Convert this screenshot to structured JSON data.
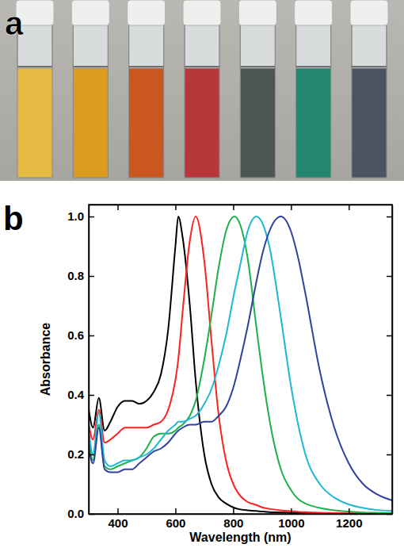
{
  "photo": {
    "panel_label": "a",
    "vial_colors": [
      "#e6bb45",
      "#dc9a1e",
      "#c9571f",
      "#b8373a",
      "#4b5654",
      "#23876f",
      "#4a5561"
    ]
  },
  "chart_data": {
    "type": "line",
    "panel_label": "b",
    "x_label": "Wavelength (nm)",
    "y_label": "Absorbance",
    "x": [
      300,
      315,
      335,
      355,
      375,
      400,
      425,
      450,
      475,
      500,
      525,
      550,
      575,
      600,
      610,
      625,
      650,
      670,
      700,
      725,
      750,
      775,
      805,
      825,
      850,
      880,
      900,
      925,
      965,
      1000,
      1025,
      1050,
      1100,
      1150,
      1200,
      1250,
      1300,
      1350
    ],
    "series": [
      {
        "color": "#000000",
        "values": [
          0.35,
          0.29,
          0.39,
          0.28,
          0.31,
          0.36,
          0.38,
          0.38,
          0.37,
          0.38,
          0.41,
          0.47,
          0.62,
          0.9,
          1.0,
          0.93,
          0.7,
          0.45,
          0.2,
          0.1,
          0.055,
          0.035,
          0.02,
          0.015,
          0.012,
          0.01,
          0.008,
          0.006,
          0.005,
          0.004,
          0.003,
          0.003,
          0.002,
          0.002,
          0.001,
          0.001,
          0.001,
          0.001
        ]
      },
      {
        "color": "#ff2020",
        "values": [
          0.3,
          0.25,
          0.35,
          0.24,
          0.25,
          0.27,
          0.29,
          0.29,
          0.29,
          0.29,
          0.3,
          0.31,
          0.35,
          0.45,
          0.52,
          0.68,
          0.92,
          1.0,
          0.85,
          0.58,
          0.33,
          0.18,
          0.09,
          0.06,
          0.04,
          0.03,
          0.022,
          0.017,
          0.012,
          0.009,
          0.007,
          0.006,
          0.004,
          0.003,
          0.002,
          0.002,
          0.001,
          0.001
        ]
      },
      {
        "color": "#1fb04a",
        "values": [
          0.25,
          0.18,
          0.3,
          0.16,
          0.15,
          0.16,
          0.17,
          0.18,
          0.19,
          0.22,
          0.26,
          0.27,
          0.27,
          0.28,
          0.29,
          0.3,
          0.33,
          0.38,
          0.52,
          0.67,
          0.83,
          0.95,
          1.0,
          0.97,
          0.86,
          0.63,
          0.48,
          0.32,
          0.15,
          0.08,
          0.05,
          0.035,
          0.02,
          0.012,
          0.008,
          0.005,
          0.004,
          0.003
        ]
      },
      {
        "color": "#1fb8d2",
        "values": [
          0.28,
          0.2,
          0.34,
          0.18,
          0.16,
          0.17,
          0.18,
          0.18,
          0.19,
          0.2,
          0.22,
          0.25,
          0.28,
          0.3,
          0.31,
          0.31,
          0.32,
          0.33,
          0.37,
          0.42,
          0.5,
          0.6,
          0.75,
          0.84,
          0.95,
          1.0,
          0.98,
          0.9,
          0.66,
          0.43,
          0.3,
          0.2,
          0.1,
          0.055,
          0.032,
          0.02,
          0.013,
          0.01
        ]
      },
      {
        "color": "#3040a0",
        "values": [
          0.22,
          0.17,
          0.29,
          0.15,
          0.14,
          0.14,
          0.15,
          0.15,
          0.17,
          0.19,
          0.21,
          0.22,
          0.24,
          0.27,
          0.28,
          0.29,
          0.3,
          0.3,
          0.31,
          0.31,
          0.33,
          0.36,
          0.44,
          0.52,
          0.63,
          0.78,
          0.87,
          0.95,
          1.0,
          0.95,
          0.86,
          0.74,
          0.48,
          0.29,
          0.17,
          0.1,
          0.065,
          0.045
        ]
      }
    ],
    "xlim": [
      300,
      1350
    ],
    "xticks": [
      400,
      600,
      800,
      1000,
      1200
    ],
    "ylim": [
      0,
      1.04
    ],
    "yticks": [
      {
        "value": 0,
        "label": "0.0"
      },
      0.2,
      0.4,
      0.6,
      0.8,
      {
        "value": 1,
        "label": "1.0"
      }
    ],
    "grid": false
  }
}
